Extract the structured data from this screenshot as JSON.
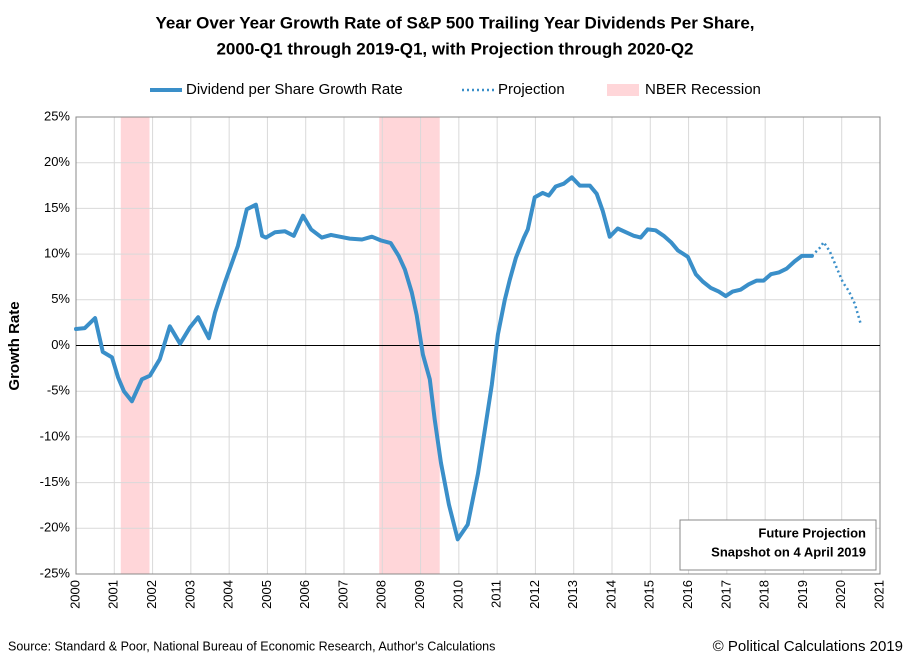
{
  "chart_data": {
    "type": "line",
    "title_lines": [
      "Year Over Year Growth Rate of S&P 500 Trailing Year Dividends Per Share,",
      "2000-Q1 through 2019-Q1, with Projection through 2020-Q2"
    ],
    "y_label": "Growth Rate",
    "xlim": [
      2000,
      2021
    ],
    "xticks": [
      2000,
      2001,
      2002,
      2003,
      2004,
      2005,
      2006,
      2007,
      2008,
      2009,
      2010,
      2011,
      2012,
      2013,
      2014,
      2015,
      2016,
      2017,
      2018,
      2019,
      2020,
      2021
    ],
    "ylim": [
      -25,
      25
    ],
    "yticks": [
      {
        "value": -25,
        "label": "-25%"
      },
      {
        "value": -20,
        "label": "-20%"
      },
      {
        "value": -15,
        "label": "-15%"
      },
      {
        "value": -10,
        "label": "-10%"
      },
      {
        "value": -5,
        "label": "-5%"
      },
      {
        "value": 0,
        "label": "0%"
      },
      {
        "value": 5,
        "label": "5%"
      },
      {
        "value": 10,
        "label": "10%"
      },
      {
        "value": 15,
        "label": "15%"
      },
      {
        "value": 20,
        "label": "20%"
      },
      {
        "value": 25,
        "label": "25%"
      }
    ],
    "grid": true,
    "series": [
      {
        "name": "Dividend per Share Growth Rate",
        "color": "#3a8fc9",
        "style": "solid",
        "x": [
          2000.0,
          2000.23,
          2000.5,
          2000.7,
          2000.94,
          2001.1,
          2001.25,
          2001.46,
          2001.72,
          2001.93,
          2002.19,
          2002.45,
          2002.72,
          2002.98,
          2003.19,
          2003.47,
          2003.63,
          2003.89,
          2004.07,
          2004.23,
          2004.46,
          2004.7,
          2004.86,
          2004.96,
          2005.2,
          2005.46,
          2005.69,
          2005.93,
          2006.14,
          2006.42,
          2006.66,
          2006.89,
          2007.15,
          2007.47,
          2007.73,
          2007.96,
          2008.22,
          2008.43,
          2008.59,
          2008.77,
          2008.9,
          2009.06,
          2009.24,
          2009.37,
          2009.53,
          2009.74,
          2009.97,
          2010.23,
          2010.5,
          2010.68,
          2010.86,
          2011.02,
          2011.2,
          2011.33,
          2011.49,
          2011.7,
          2011.8,
          2011.98,
          2012.19,
          2012.35,
          2012.53,
          2012.74,
          2012.95,
          2013.16,
          2013.42,
          2013.6,
          2013.76,
          2013.94,
          2014.15,
          2014.36,
          2014.57,
          2014.75,
          2014.93,
          2015.14,
          2015.35,
          2015.54,
          2015.72,
          2015.98,
          2016.19,
          2016.37,
          2016.58,
          2016.79,
          2016.97,
          2017.15,
          2017.36,
          2017.57,
          2017.78,
          2017.96,
          2018.15,
          2018.36,
          2018.56,
          2018.77,
          2018.96,
          2019.22
        ],
        "values": [
          1.8,
          1.9,
          3.0,
          -0.7,
          -1.3,
          -3.5,
          -5.0,
          -6.1,
          -3.7,
          -3.3,
          -1.5,
          2.1,
          0.2,
          2.0,
          3.1,
          0.8,
          3.6,
          6.9,
          9.0,
          10.9,
          14.9,
          15.4,
          12.0,
          11.8,
          12.4,
          12.5,
          12.0,
          14.2,
          12.7,
          11.8,
          12.1,
          11.9,
          11.7,
          11.6,
          11.9,
          11.5,
          11.2,
          9.8,
          8.3,
          5.8,
          3.3,
          -1.0,
          -3.7,
          -8.1,
          -12.8,
          -17.4,
          -21.2,
          -19.6,
          -14.0,
          -9.2,
          -4.3,
          1.2,
          5.0,
          7.2,
          9.6,
          11.8,
          12.7,
          16.2,
          16.7,
          16.4,
          17.4,
          17.7,
          18.4,
          17.5,
          17.5,
          16.6,
          14.7,
          11.9,
          12.8,
          12.4,
          12.0,
          11.8,
          12.7,
          12.6,
          12.0,
          11.3,
          10.4,
          9.7,
          7.8,
          7.0,
          6.3,
          5.9,
          5.4,
          5.9,
          6.1,
          6.7,
          7.1,
          7.1,
          7.8,
          8.0,
          8.4,
          9.2,
          9.8,
          9.8
        ]
      },
      {
        "name": "Projection",
        "color": "#3a8fc9",
        "style": "dotted",
        "x": [
          2019.22,
          2019.43,
          2019.53,
          2019.69,
          2019.87,
          2020.03,
          2020.18,
          2020.34,
          2020.5
        ],
        "values": [
          9.8,
          10.7,
          11.3,
          10.3,
          8.5,
          6.9,
          6.0,
          4.6,
          2.3
        ]
      }
    ],
    "recessions": {
      "name": "NBER Recession",
      "color": "#ffd6d9",
      "ranges": [
        [
          2001.17,
          2001.92
        ],
        [
          2007.92,
          2009.5
        ]
      ]
    },
    "annotation": [
      "Future Projection",
      "Snapshot on 4 April 2019"
    ],
    "source": "Source: Standard & Poor, National Bureau of Economic Research, Author's Calculations",
    "credit": "© Political Calculations 2019"
  }
}
